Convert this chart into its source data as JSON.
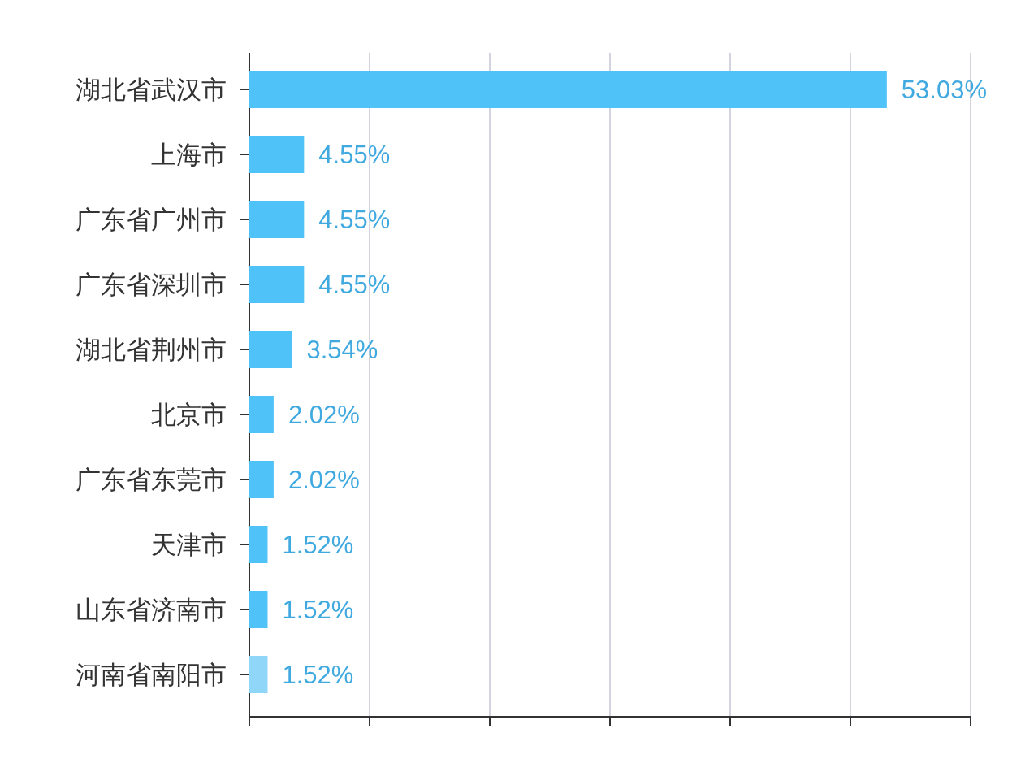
{
  "chart_data": {
    "type": "bar",
    "orientation": "horizontal",
    "categories": [
      "湖北省武汉市",
      "上海市",
      "广东省广州市",
      "广东省深圳市",
      "湖北省荆州市",
      "北京市",
      "广东省东莞市",
      "天津市",
      "山东省济南市",
      "河南省南阳市"
    ],
    "values": [
      53.03,
      4.55,
      4.55,
      4.55,
      3.54,
      2.02,
      2.02,
      1.52,
      1.52,
      1.52
    ],
    "value_labels": [
      "53.03%",
      "4.55%",
      "4.55%",
      "4.55%",
      "3.54%",
      "2.02%",
      "2.02%",
      "1.52%",
      "1.52%",
      "1.52%"
    ],
    "colors": [
      "#4fc3f7",
      "#4fc3f7",
      "#4fc3f7",
      "#4fc3f7",
      "#4fc3f7",
      "#4fc3f7",
      "#4fc3f7",
      "#4fc3f7",
      "#4fc3f7",
      "#8fd6f8"
    ],
    "xlim": [
      0,
      60
    ],
    "xticks": [
      {
        "value": 0,
        "label": null
      },
      {
        "value": 10,
        "label": null
      },
      {
        "value": 20,
        "label": null
      },
      {
        "value": 30,
        "label": null
      },
      {
        "value": 40,
        "label": null
      },
      {
        "value": 50,
        "label": null
      },
      {
        "value": 60,
        "label": null
      }
    ],
    "grid": "x"
  }
}
